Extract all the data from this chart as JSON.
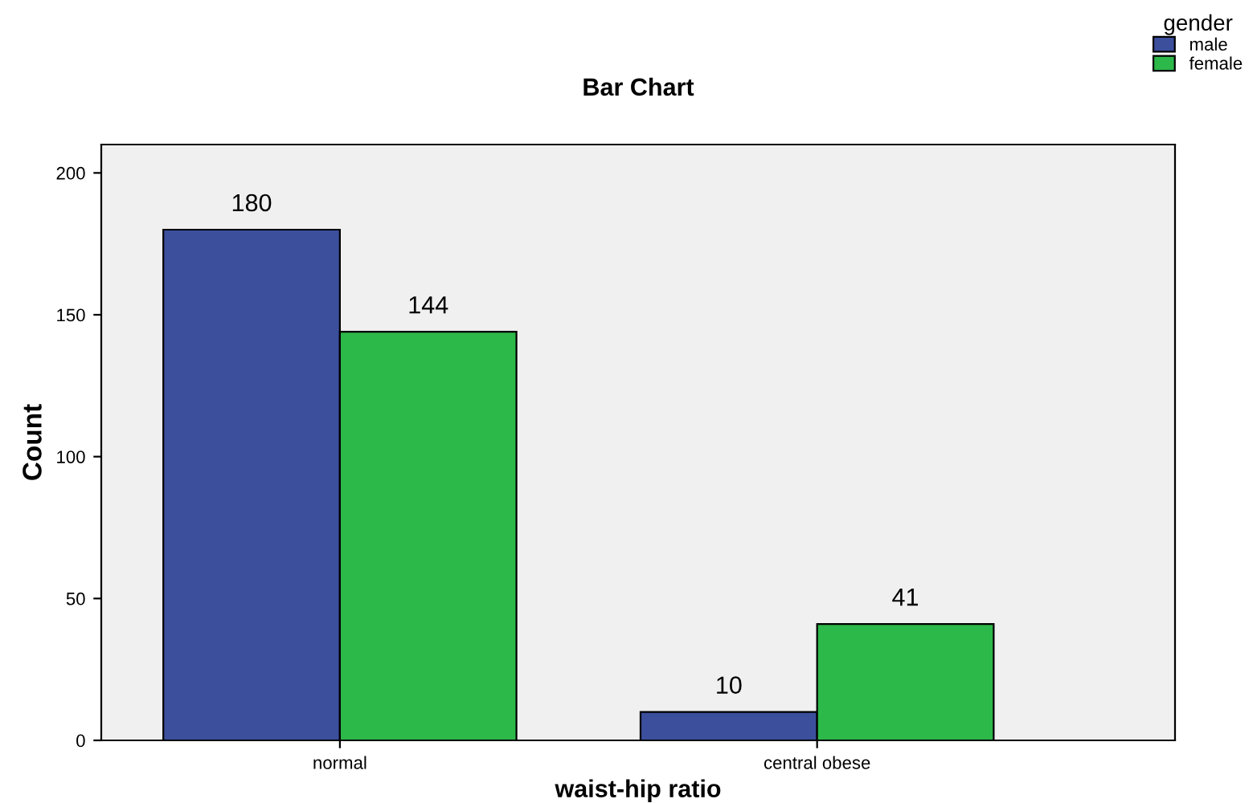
{
  "chart_data": {
    "type": "bar",
    "title": "Bar Chart",
    "xlabel": "waist-hip ratio",
    "ylabel": "Count",
    "legend_title": "gender",
    "legend": "top right",
    "categories": [
      "normal",
      "central obese"
    ],
    "series": [
      {
        "name": "male",
        "color": "#3b4f9c",
        "values": [
          180,
          10
        ]
      },
      {
        "name": "female",
        "color": "#2db84a",
        "values": [
          144,
          41
        ]
      }
    ],
    "ylim": [
      0,
      210
    ],
    "yticks": [
      0,
      50,
      100,
      150,
      200
    ],
    "data_labels": true,
    "grid": false
  }
}
